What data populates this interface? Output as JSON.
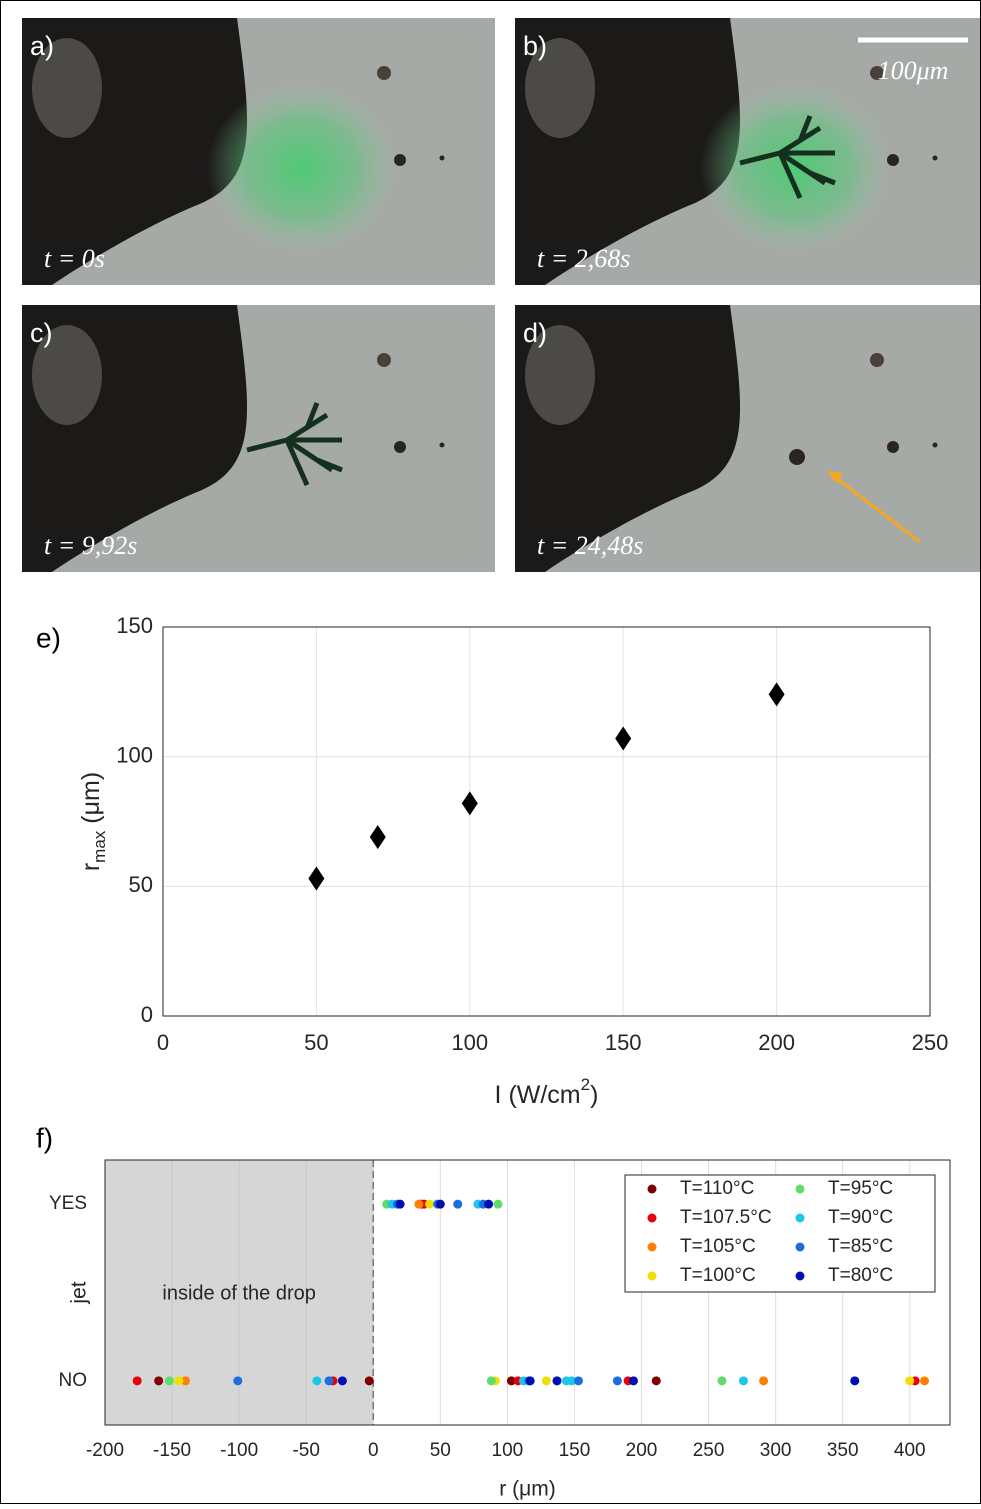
{
  "panels": [
    {
      "label": "a)",
      "time": "t = 0s"
    },
    {
      "label": "b)",
      "time": "t = 2,68s"
    },
    {
      "label": "c)",
      "time": "t = 9,92s"
    },
    {
      "label": "d)",
      "time": "t = 24,48s"
    }
  ],
  "scale_bar": "100μm",
  "chart_data": [
    {
      "type": "scatter",
      "panel_label": "e)",
      "x": [
        50,
        70,
        100,
        150,
        200
      ],
      "values": [
        53,
        69,
        82,
        107,
        124
      ],
      "color": "#000000",
      "xlim": [
        0,
        250
      ],
      "xticks": [
        0,
        50,
        100,
        150,
        200,
        250
      ],
      "ylim": [
        0,
        150
      ],
      "yticks": [
        0,
        50,
        100,
        150
      ],
      "grid": true,
      "xlabel": {
        "main": "I (W/cm",
        "sup": "2",
        "end": ")"
      },
      "ylabel": {
        "main": "r",
        "sub": "max",
        "end": " (μm)"
      }
    },
    {
      "type": "strip",
      "panel_label": "f)",
      "categories": [
        "NO",
        "YES"
      ],
      "ylim": [
        -0.25,
        1.25
      ],
      "xlim": [
        -200,
        430
      ],
      "xticks": [
        -200,
        -150,
        -100,
        -50,
        0,
        50,
        100,
        150,
        200,
        250,
        300,
        350,
        400
      ],
      "grid": true,
      "xlabel": "r (μm)",
      "ylabel": "jet",
      "shaded_region": {
        "xlim": [
          -200,
          0
        ],
        "label": "inside of the drop",
        "color": "#d6d6d6"
      },
      "legend": "upper right",
      "series": [
        {
          "name": "T=110°C",
          "color": "#7f0000",
          "x": [
            36,
            -160,
            -3,
            103,
            211
          ],
          "y": [
            "YES",
            "NO",
            "NO",
            "NO",
            "NO"
          ]
        },
        {
          "name": "T=107.5°C",
          "color": "#e8000b",
          "x": [
            38,
            -176,
            -30,
            108,
            190,
            404
          ],
          "y": [
            "YES",
            "NO",
            "NO",
            "NO",
            "NO",
            "NO"
          ]
        },
        {
          "name": "T=105°C",
          "color": "#ff8000",
          "x": [
            34,
            -140,
            291,
            411
          ],
          "y": [
            "YES",
            "NO",
            "NO",
            "NO"
          ]
        },
        {
          "name": "T=100°C",
          "color": "#f0e000",
          "x": [
            42,
            -145,
            91,
            129,
            400
          ],
          "y": [
            "YES",
            "NO",
            "NO",
            "NO",
            "NO"
          ]
        },
        {
          "name": "T=95°C",
          "color": "#5fdc6a",
          "x": [
            10,
            93,
            -152,
            88,
            260
          ],
          "y": [
            "YES",
            "YES",
            "NO",
            "NO",
            "NO"
          ]
        },
        {
          "name": "T=90°C",
          "color": "#1bc6e8",
          "x": [
            14,
            78,
            -42,
            112,
            137,
            144,
            148,
            276
          ],
          "y": [
            "YES",
            "YES",
            "NO",
            "NO",
            "NO",
            "NO",
            "NO",
            "NO"
          ]
        },
        {
          "name": "T=85°C",
          "color": "#1a6fe0",
          "x": [
            18,
            48,
            63,
            82,
            -101,
            -33,
            116,
            153,
            182
          ],
          "y": [
            "YES",
            "YES",
            "YES",
            "YES",
            "NO",
            "NO",
            "NO",
            "NO",
            "NO"
          ]
        },
        {
          "name": "T=80°C",
          "color": "#0010b0",
          "x": [
            20,
            50,
            86,
            -23,
            117,
            137,
            194,
            359
          ],
          "y": [
            "YES",
            "YES",
            "YES",
            "NO",
            "NO",
            "NO",
            "NO",
            "NO"
          ]
        }
      ]
    }
  ]
}
